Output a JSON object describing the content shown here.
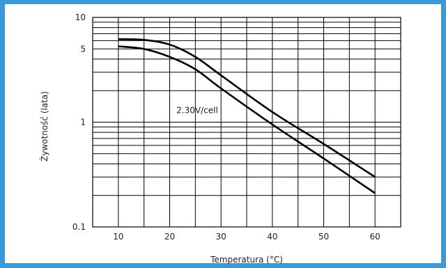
{
  "chart_data": {
    "type": "line",
    "title": "",
    "xlabel": "Temperatura (°C)",
    "ylabel": "Żywotność (lata)",
    "x_scale": "linear",
    "y_scale": "log",
    "xlim": [
      5,
      65
    ],
    "ylim": [
      0.1,
      10
    ],
    "x_ticks": [
      10,
      20,
      30,
      40,
      50,
      60
    ],
    "x_tick_labels": [
      "10",
      "20",
      "30",
      "40",
      "50",
      "60"
    ],
    "y_ticks": [
      0.1,
      1,
      5,
      10
    ],
    "y_tick_labels": [
      "0.1",
      "1",
      "5",
      "10"
    ],
    "grid": true,
    "legend": "none",
    "annotations": [
      {
        "text": "2.30V/cell",
        "x": 30,
        "y": 1.3
      }
    ],
    "series": [
      {
        "line_color": "#000000",
        "x": [
          10,
          15,
          20,
          25,
          30,
          40,
          50,
          60
        ],
        "y": [
          6.2,
          6.1,
          5.5,
          4.2,
          2.8,
          1.25,
          0.62,
          0.3
        ]
      },
      {
        "line_color": "#000000",
        "x": [
          10,
          15,
          20,
          25,
          30,
          40,
          50,
          60
        ],
        "y": [
          5.3,
          5.0,
          4.2,
          3.2,
          2.1,
          0.95,
          0.45,
          0.21
        ]
      }
    ]
  }
}
